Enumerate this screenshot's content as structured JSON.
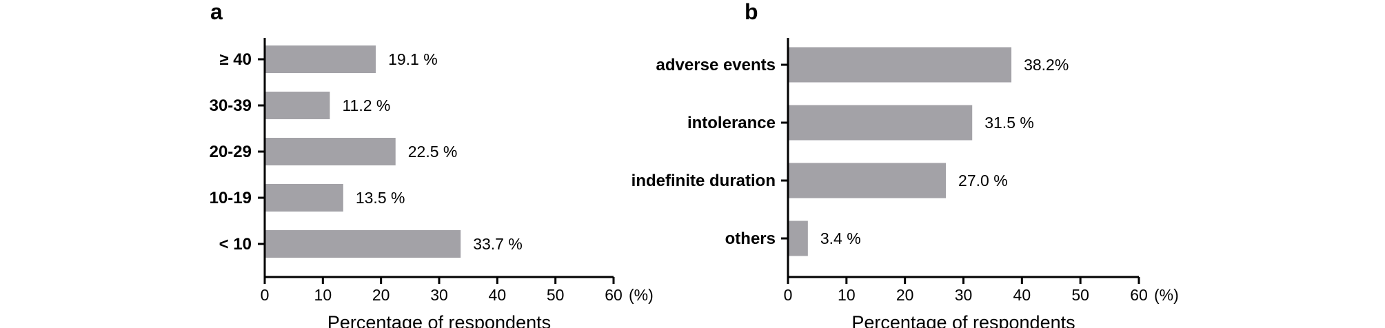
{
  "chart_data": [
    {
      "panel": "a",
      "type": "bar",
      "orientation": "horizontal",
      "categories": [
        "≥ 40",
        "30-39",
        "20-29",
        "10-19",
        "< 10"
      ],
      "values": [
        19.1,
        11.2,
        22.5,
        13.5,
        33.7
      ],
      "value_labels": [
        "19.1 %",
        "11.2  %",
        "22.5 %",
        "13.5 %",
        "33.7 %"
      ],
      "xlabel": "Percentage of respondents",
      "x_unit": "(%)",
      "xlim": [
        0,
        60
      ],
      "xticks": [
        0,
        10,
        20,
        30,
        40,
        50,
        60
      ],
      "bar_color": "#a3a2a7",
      "grid": false
    },
    {
      "panel": "b",
      "type": "bar",
      "orientation": "horizontal",
      "categories": [
        "adverse events",
        "intolerance",
        "indefinite duration",
        "others"
      ],
      "values": [
        38.2,
        31.5,
        27.0,
        3.4
      ],
      "value_labels": [
        "38.2%",
        "31.5 %",
        "27.0 %",
        "3.4 %"
      ],
      "xlabel": "Percentage of respondents",
      "x_unit": "(%)",
      "xlim": [
        0,
        60
      ],
      "xticks": [
        0,
        10,
        20,
        30,
        40,
        50,
        60
      ],
      "bar_color": "#a3a2a7",
      "grid": false
    }
  ]
}
